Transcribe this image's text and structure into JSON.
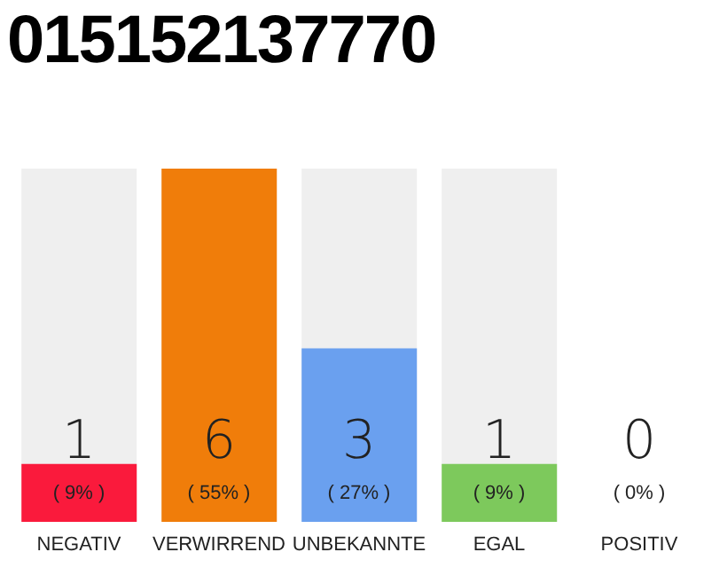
{
  "chart_data": {
    "type": "bar",
    "title": "015152137770",
    "categories": [
      "NEGATIV",
      "VERWIRREND",
      "UNBEKANNTE",
      "EGAL",
      "POSITIV"
    ],
    "values": [
      9,
      55,
      27,
      9,
      0
    ],
    "colors": [
      "#fa1a3c",
      "#f07d0a",
      "#6aa0ef",
      "#7dc95c",
      "#7dc95c"
    ],
    "value_labels": [
      "( 9% )",
      "( 55% )",
      "( 27% )",
      "( 9% )",
      "( 0% )"
    ],
    "annotations": [
      "1",
      "6",
      "3",
      "1",
      "0"
    ]
  }
}
